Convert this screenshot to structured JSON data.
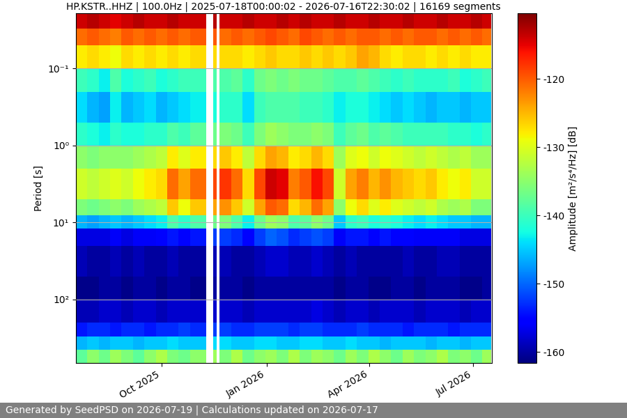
{
  "chart_data": {
    "type": "heatmap",
    "title": "HP.KSTR..HHZ | 100.0Hz | 2025-07-18T00:00:02 - 2026-07-16T22:30:02 | 16169 segments",
    "y_label": "Period [s]",
    "colorbar_label": "Amplitude [m²/s⁴/Hz] [dB]",
    "footer": "Generated by SeedPSD on 2026-07-19 | Calculations updated on 2026-07-17",
    "log": "y",
    "grid": true,
    "xlim": [
      "2025-07-18",
      "2026-07-17"
    ],
    "xticks": [
      {
        "value": "2025-10-01",
        "label": "Oct 2025"
      },
      {
        "value": "2026-01-01",
        "label": "Jan 2026"
      },
      {
        "value": "2026-04-01",
        "label": "Apr 2026"
      },
      {
        "value": "2026-07-01",
        "label": "Jul 2026"
      }
    ],
    "ylim": [
      665,
      0.0192
    ],
    "yticks": [
      {
        "value": 0.1,
        "label": "10⁻¹"
      },
      {
        "value": 1,
        "label": "10⁰"
      },
      {
        "value": 10,
        "label": "10¹"
      },
      {
        "value": 100,
        "label": "10²"
      }
    ],
    "colorbar_range": [
      -161.6,
      -110.4
    ],
    "colorbar_ticks": [
      -120,
      -130,
      -140,
      -150,
      -160
    ],
    "time_edges": [
      "2025-07-18",
      "2025-07-28",
      "2025-08-07",
      "2025-08-17",
      "2025-08-27",
      "2025-09-06",
      "2025-09-16",
      "2025-09-26",
      "2025-10-06",
      "2025-10-16",
      "2025-10-26",
      "2025-11-09",
      "2025-11-15",
      "2025-11-18",
      "2025-11-21",
      "2025-12-01",
      "2025-12-11",
      "2025-12-21",
      "2025-12-31",
      "2026-01-10",
      "2026-01-20",
      "2026-01-30",
      "2026-02-09",
      "2026-02-19",
      "2026-03-01",
      "2026-03-11",
      "2026-03-21",
      "2026-03-31",
      "2026-04-10",
      "2026-04-20",
      "2026-04-30",
      "2026-05-10",
      "2026-05-20",
      "2026-05-30",
      "2026-06-09",
      "2026-06-19",
      "2026-06-29",
      "2026-07-09",
      "2026-07-16T22:30:02"
    ],
    "period_edges": [
      0.0192,
      0.03,
      0.05,
      0.1,
      0.2,
      0.5,
      1,
      2,
      5,
      8,
      12,
      20,
      50,
      100,
      200,
      300,
      450,
      665
    ],
    "cells": [
      [
        -114,
        -113,
        -114,
        -115,
        -114,
        -113,
        -114,
        -114,
        -113,
        -114,
        -114,
        null,
        -113,
        null,
        -114,
        -114,
        -113,
        -114,
        -114,
        -113,
        -114,
        -113,
        -114,
        -114,
        -113,
        -114,
        -114,
        -113,
        -114,
        -114,
        -113,
        -114,
        -114,
        -113,
        -114,
        -114,
        -113,
        -114
      ],
      [
        -121,
        -120,
        -121,
        -122,
        -120,
        -121,
        -120,
        -121,
        -120,
        -121,
        -120,
        null,
        -120,
        null,
        -121,
        -120,
        -121,
        -120,
        -119,
        -120,
        -121,
        -119,
        -120,
        -121,
        -120,
        -121,
        -120,
        -120,
        -121,
        -120,
        -121,
        -120,
        -120,
        -121,
        -120,
        -121,
        -120,
        -121
      ],
      [
        -128,
        -127,
        -128,
        -129,
        -127,
        -128,
        -127,
        -128,
        -127,
        -128,
        -127,
        null,
        -127,
        null,
        -127,
        -127,
        -128,
        -127,
        -126,
        -127,
        -127,
        -126,
        -127,
        -126,
        -127,
        -126,
        -124,
        -125,
        -127,
        -128,
        -127,
        -127,
        -128,
        -127,
        -128,
        -127,
        -128,
        -128
      ],
      [
        -140,
        -141,
        -143,
        -139,
        -142,
        -141,
        -140,
        -142,
        -141,
        -140,
        -140,
        null,
        -139,
        null,
        -139,
        -138,
        -141,
        -137,
        -136,
        -137,
        -136,
        -137,
        -137,
        -138,
        -139,
        -139,
        -138,
        -139,
        -140,
        -141,
        -140,
        -141,
        -141,
        -141,
        -140,
        -142,
        -141,
        -140
      ],
      [
        -144,
        -146,
        -147,
        -143,
        -146,
        -145,
        -144,
        -146,
        -145,
        -144,
        -143,
        null,
        -142,
        null,
        -141,
        -141,
        -144,
        -140,
        -139,
        -139,
        -139,
        -140,
        -140,
        -141,
        -143,
        -142,
        -142,
        -143,
        -144,
        -145,
        -144,
        -145,
        -146,
        -145,
        -145,
        -146,
        -145,
        -145
      ],
      [
        -141,
        -142,
        -143,
        -141,
        -142,
        -142,
        -141,
        -141,
        -139,
        -140,
        -138,
        null,
        -137,
        null,
        -136,
        -137,
        -140,
        -136,
        -134,
        -135,
        -136,
        -136,
        -135,
        -136,
        -140,
        -138,
        -137,
        -139,
        -138,
        -139,
        -140,
        -140,
        -140,
        -140,
        -141,
        -141,
        -142,
        -141
      ],
      [
        -135,
        -136,
        -135,
        -135,
        -135,
        -134,
        -133,
        -132,
        -128,
        -130,
        -128,
        null,
        -127,
        null,
        -126,
        -128,
        -132,
        -127,
        -124,
        -125,
        -128,
        -127,
        -125,
        -127,
        -134,
        -130,
        -129,
        -131,
        -129,
        -130,
        -131,
        -132,
        -131,
        -132,
        -133,
        -132,
        -134,
        -134
      ],
      [
        -131,
        -132,
        -131,
        -130,
        -131,
        -129,
        -128,
        -127,
        -121,
        -124,
        -121,
        null,
        -119,
        null,
        -118,
        -121,
        -127,
        -119,
        -114,
        -115,
        -122,
        -120,
        -116,
        -119,
        -131,
        -124,
        -122,
        -125,
        -123,
        -125,
        -126,
        -127,
        -126,
        -128,
        -129,
        -128,
        -131,
        -131
      ],
      [
        -136,
        -137,
        -136,
        -135,
        -136,
        -134,
        -133,
        -132,
        -126,
        -129,
        -126,
        null,
        -124,
        null,
        -123,
        -126,
        -131,
        -124,
        -120,
        -121,
        -127,
        -125,
        -121,
        -124,
        -135,
        -129,
        -127,
        -130,
        -128,
        -130,
        -131,
        -132,
        -131,
        -133,
        -134,
        -133,
        -136,
        -136
      ],
      [
        -146,
        -147,
        -146,
        -145,
        -146,
        -145,
        -144,
        -143,
        -139,
        -141,
        -139,
        null,
        -137,
        null,
        -136,
        -139,
        -143,
        -137,
        -134,
        -135,
        -139,
        -138,
        -135,
        -137,
        -145,
        -141,
        -140,
        -142,
        -141,
        -142,
        -143,
        -144,
        -143,
        -144,
        -145,
        -145,
        -146,
        -146
      ],
      [
        -157,
        -157,
        -157,
        -156,
        -157,
        -156,
        -156,
        -155,
        -154,
        -155,
        -154,
        null,
        -152,
        null,
        -152,
        -153,
        -155,
        -152,
        -150,
        -151,
        -153,
        -152,
        -151,
        -152,
        -156,
        -154,
        -154,
        -155,
        -154,
        -155,
        -155,
        -156,
        -156,
        -156,
        -156,
        -157,
        -157,
        -157
      ],
      [
        -159,
        -160,
        -160,
        -159,
        -160,
        -159,
        -160,
        -160,
        -159,
        -160,
        -160,
        null,
        -159,
        null,
        -159,
        -160,
        -160,
        -159,
        -158,
        -158,
        -159,
        -159,
        -158,
        -159,
        -160,
        -159,
        -160,
        -160,
        -160,
        -160,
        -159,
        -160,
        -160,
        -159,
        -159,
        -160,
        -160,
        -160
      ],
      [
        -161,
        -161,
        -160,
        -160,
        -161,
        -160,
        -160,
        -161,
        -160,
        -160,
        -161,
        null,
        -160,
        null,
        -160,
        -160,
        -161,
        -160,
        -160,
        -160,
        -160,
        -160,
        -160,
        -160,
        -161,
        -160,
        -160,
        -161,
        -161,
        -160,
        -160,
        -161,
        -160,
        -160,
        -160,
        -161,
        -161,
        -160
      ],
      [
        -159,
        -159,
        -158,
        -158,
        -159,
        -158,
        -158,
        -159,
        -158,
        -158,
        -158,
        null,
        -158,
        null,
        -158,
        -158,
        -159,
        -158,
        -158,
        -158,
        -158,
        -158,
        -157,
        -158,
        -159,
        -158,
        -158,
        -159,
        -158,
        -158,
        -158,
        -159,
        -158,
        -158,
        -158,
        -159,
        -158,
        -158
      ],
      [
        -154,
        -153,
        -153,
        -154,
        -153,
        -153,
        -154,
        -153,
        -153,
        -152,
        -153,
        null,
        -152,
        null,
        -152,
        -153,
        -153,
        -152,
        -152,
        -152,
        -153,
        -152,
        -152,
        -153,
        -153,
        -153,
        -152,
        -153,
        -153,
        -153,
        -154,
        -153,
        -153,
        -153,
        -154,
        -153,
        -153,
        -153
      ],
      [
        -146,
        -145,
        -146,
        -145,
        -145,
        -146,
        -145,
        -145,
        -144,
        -145,
        -145,
        null,
        -144,
        null,
        -144,
        -145,
        -145,
        -144,
        -144,
        -145,
        -145,
        -144,
        -144,
        -145,
        -145,
        -144,
        -145,
        -145,
        -146,
        -145,
        -145,
        -145,
        -146,
        -145,
        -145,
        -146,
        -145,
        -145
      ],
      [
        -138,
        -135,
        -137,
        -134,
        -136,
        -138,
        -135,
        -133,
        -136,
        -137,
        -135,
        null,
        -134,
        null,
        -136,
        -133,
        -137,
        -135,
        -134,
        -136,
        -133,
        -136,
        -134,
        -135,
        -137,
        -134,
        -136,
        -133,
        -135,
        -137,
        -134,
        -136,
        -135,
        -133,
        -136,
        -135,
        -137,
        -134
      ]
    ]
  }
}
